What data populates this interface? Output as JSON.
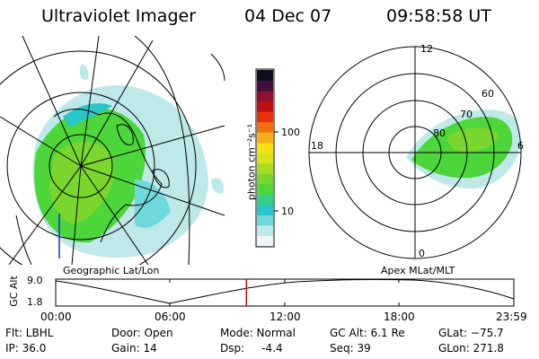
{
  "header": {
    "instrument": "Ultraviolet Imager",
    "date": "04 Dec 07",
    "time": "09:58:58 UT"
  },
  "geo_panel": {
    "label": "Geographic Lat/Lon"
  },
  "colorbar": {
    "unit_label": "photon cm⁻²s⁻¹",
    "ticks": [
      "100",
      "10"
    ],
    "scale": "log",
    "colors": [
      "#eef5f6",
      "#bfe8e9",
      "#6fd8da",
      "#28c6c8",
      "#34d08a",
      "#4cd63a",
      "#7ad62c",
      "#a6dc22",
      "#d8e418",
      "#f8e010",
      "#f8b018",
      "#f07010",
      "#e83010",
      "#c01010",
      "#901030",
      "#401040",
      "#10101c"
    ]
  },
  "polar_panel": {
    "label": "Apex MLat/MLT",
    "mlt_labels": {
      "top": "12",
      "left": "18",
      "right": "6",
      "bottom": "0"
    },
    "lat_labels": [
      "60",
      "70",
      "80"
    ]
  },
  "altitude_plot": {
    "ylabel": "GC Alt",
    "yticks": [
      "9.0",
      "1.8"
    ],
    "xticks": [
      "00:00",
      "06:00",
      "12:00",
      "18:00",
      "23:59"
    ],
    "marker_time": "09:58:58",
    "marker_color": "#e00000"
  },
  "info": {
    "flt": "Flt: LBHL",
    "ip": "IP: 36.0",
    "door": "Door: Open",
    "gain": "Gain: 14",
    "mode": "Mode: Normal",
    "dsp": "Dsp:     -4.4",
    "gcalt": "GC Alt: 6.1 Re",
    "seq": "Seq: 39",
    "glat": "GLat: −75.7",
    "glon": "GLon: 271.8"
  }
}
